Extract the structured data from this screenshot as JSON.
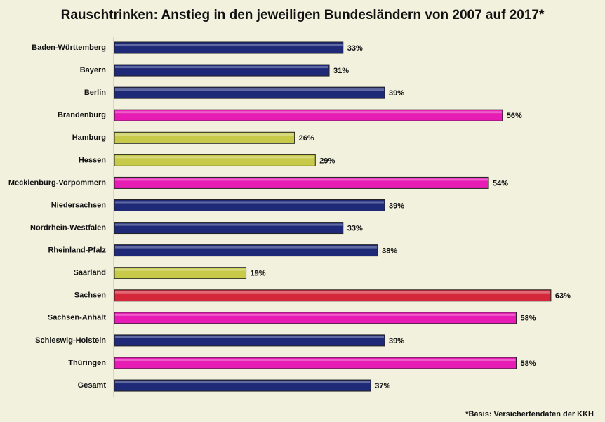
{
  "chart_data": {
    "type": "hbar",
    "title": "Rauschtrinken: Anstieg in den jeweiligen Bundesländern von 2007 auf 2017*",
    "footnote": "*Basis: Versichertendaten der KKH",
    "categories": [
      "Baden-Württemberg",
      "Bayern",
      "Berlin",
      "Brandenburg",
      "Hamburg",
      "Hessen",
      "Mecklenburg-Vorpommern",
      "Niedersachsen",
      "Nordrhein-Westfalen",
      "Rheinland-Pfalz",
      "Saarland",
      "Sachsen",
      "Sachsen-Anhalt",
      "Schleswig-Holstein",
      "Thüringen",
      "Gesamt"
    ],
    "values": [
      33,
      31,
      39,
      56,
      26,
      29,
      54,
      39,
      33,
      38,
      19,
      63,
      58,
      39,
      58,
      37
    ],
    "value_labels": [
      "33%",
      "31%",
      "39%",
      "56%",
      "26%",
      "29%",
      "54%",
      "39%",
      "33%",
      "38%",
      "19%",
      "63%",
      "58%",
      "39%",
      "58%",
      "37%"
    ],
    "colors": [
      "#1e2a78",
      "#1e2a78",
      "#1e2a78",
      "#e61cb4",
      "#c6ca48",
      "#c6ca48",
      "#e61cb4",
      "#1e2a78",
      "#1e2a78",
      "#1e2a78",
      "#c6ca48",
      "#d4283a",
      "#e61cb4",
      "#1e2a78",
      "#e61cb4",
      "#1e2a78"
    ],
    "xlim": [
      0,
      70
    ]
  }
}
